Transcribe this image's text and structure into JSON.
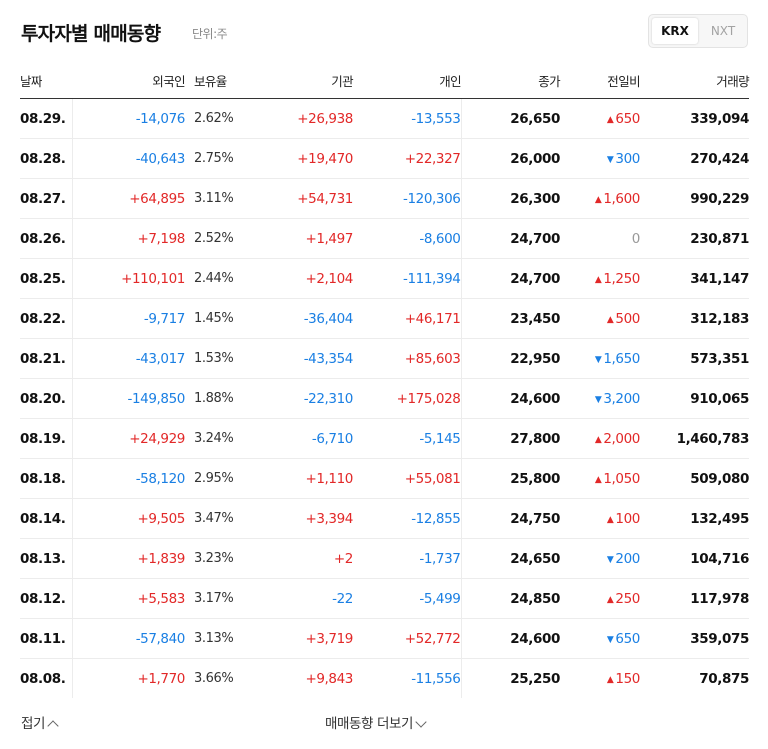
{
  "header": {
    "title": "투자자별 매매동향",
    "unit": "단위:주"
  },
  "market_toggle": {
    "active": "KRX",
    "inactive": "NXT"
  },
  "columns": {
    "date": "날짜",
    "foreign": "외국인",
    "holding": "보유율",
    "institution": "기관",
    "individual": "개인",
    "close": "종가",
    "change": "전일비",
    "volume": "거래량"
  },
  "colors": {
    "up": "#e22828",
    "down": "#1a7fe3",
    "flat": "#999999"
  },
  "rows": [
    {
      "date": "08.29.",
      "foreign": "-14,076",
      "ratio": "2.62%",
      "institution": "+26,938",
      "individual": "-13,553",
      "close": "26,650",
      "change": "650",
      "dir": "up",
      "volume": "339,094"
    },
    {
      "date": "08.28.",
      "foreign": "-40,643",
      "ratio": "2.75%",
      "institution": "+19,470",
      "individual": "+22,327",
      "close": "26,000",
      "change": "300",
      "dir": "down",
      "volume": "270,424"
    },
    {
      "date": "08.27.",
      "foreign": "+64,895",
      "ratio": "3.11%",
      "institution": "+54,731",
      "individual": "-120,306",
      "close": "26,300",
      "change": "1,600",
      "dir": "up",
      "volume": "990,229"
    },
    {
      "date": "08.26.",
      "foreign": "+7,198",
      "ratio": "2.52%",
      "institution": "+1,497",
      "individual": "-8,600",
      "close": "24,700",
      "change": "0",
      "dir": "flat",
      "volume": "230,871"
    },
    {
      "date": "08.25.",
      "foreign": "+110,101",
      "ratio": "2.44%",
      "institution": "+2,104",
      "individual": "-111,394",
      "close": "24,700",
      "change": "1,250",
      "dir": "up",
      "volume": "341,147"
    },
    {
      "date": "08.22.",
      "foreign": "-9,717",
      "ratio": "1.45%",
      "institution": "-36,404",
      "individual": "+46,171",
      "close": "23,450",
      "change": "500",
      "dir": "up",
      "volume": "312,183"
    },
    {
      "date": "08.21.",
      "foreign": "-43,017",
      "ratio": "1.53%",
      "institution": "-43,354",
      "individual": "+85,603",
      "close": "22,950",
      "change": "1,650",
      "dir": "down",
      "volume": "573,351"
    },
    {
      "date": "08.20.",
      "foreign": "-149,850",
      "ratio": "1.88%",
      "institution": "-22,310",
      "individual": "+175,028",
      "close": "24,600",
      "change": "3,200",
      "dir": "down",
      "volume": "910,065"
    },
    {
      "date": "08.19.",
      "foreign": "+24,929",
      "ratio": "3.24%",
      "institution": "-6,710",
      "individual": "-5,145",
      "close": "27,800",
      "change": "2,000",
      "dir": "up",
      "volume": "1,460,783"
    },
    {
      "date": "08.18.",
      "foreign": "-58,120",
      "ratio": "2.95%",
      "institution": "+1,110",
      "individual": "+55,081",
      "close": "25,800",
      "change": "1,050",
      "dir": "up",
      "volume": "509,080"
    },
    {
      "date": "08.14.",
      "foreign": "+9,505",
      "ratio": "3.47%",
      "institution": "+3,394",
      "individual": "-12,855",
      "close": "24,750",
      "change": "100",
      "dir": "up",
      "volume": "132,495"
    },
    {
      "date": "08.13.",
      "foreign": "+1,839",
      "ratio": "3.23%",
      "institution": "+2",
      "individual": "-1,737",
      "close": "24,650",
      "change": "200",
      "dir": "down",
      "volume": "104,716"
    },
    {
      "date": "08.12.",
      "foreign": "+5,583",
      "ratio": "3.17%",
      "institution": "-22",
      "individual": "-5,499",
      "close": "24,850",
      "change": "250",
      "dir": "up",
      "volume": "117,978"
    },
    {
      "date": "08.11.",
      "foreign": "-57,840",
      "ratio": "3.13%",
      "institution": "+3,719",
      "individual": "+52,772",
      "close": "24,600",
      "change": "650",
      "dir": "down",
      "volume": "359,075"
    },
    {
      "date": "08.08.",
      "foreign": "+1,770",
      "ratio": "3.66%",
      "institution": "+9,843",
      "individual": "-11,556",
      "close": "25,250",
      "change": "150",
      "dir": "up",
      "volume": "70,875"
    }
  ],
  "footer": {
    "collapse_label": "접기",
    "more_label": "매매동향 더보기"
  }
}
